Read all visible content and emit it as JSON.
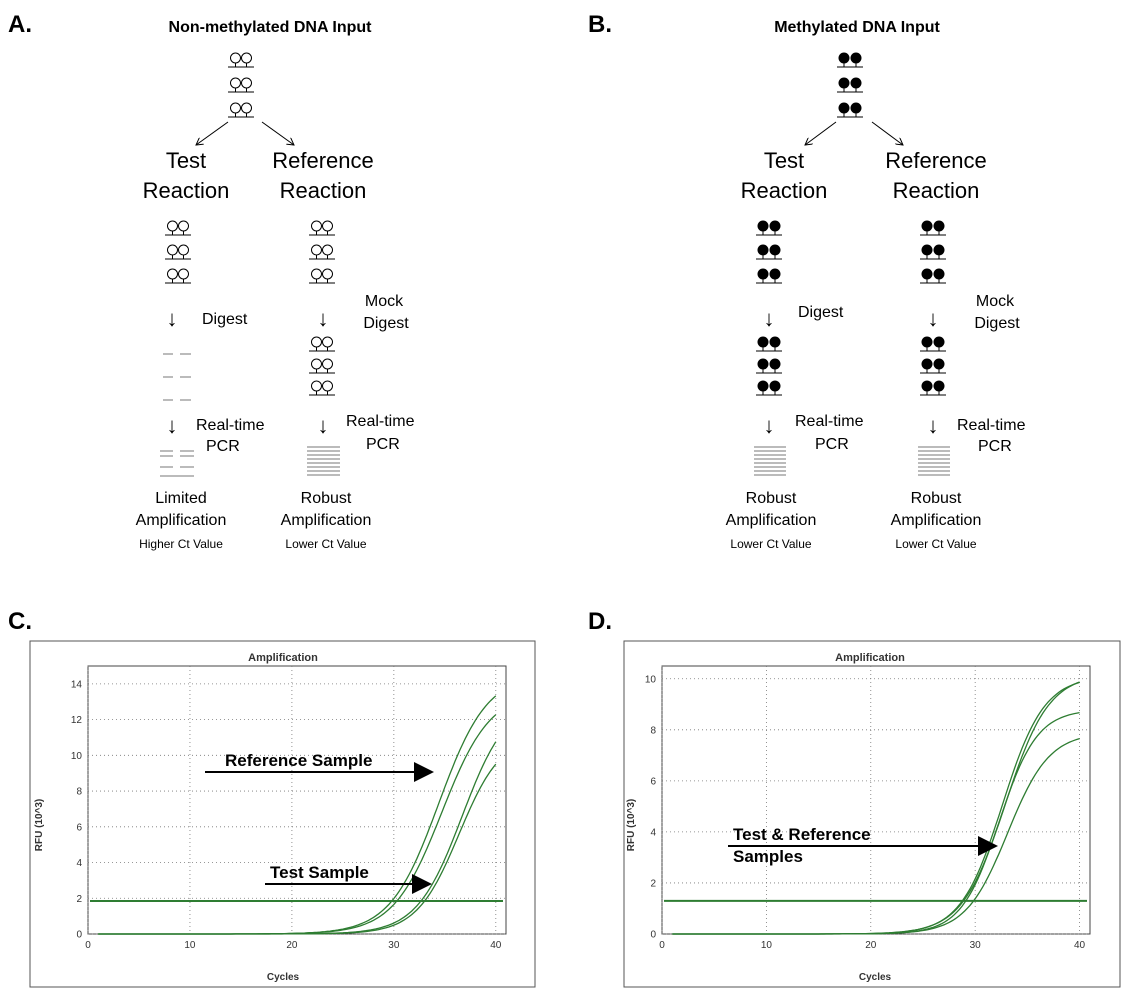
{
  "panel_a": {
    "label": "A.",
    "title": "Non-methylated DNA Input",
    "test": {
      "line1": "Test",
      "line2": "Reaction",
      "step1": "Digest",
      "step2_line1": "Real-time",
      "step2_line2": "PCR",
      "result_line1": "Limited",
      "result_line2": "Amplification",
      "result_ct": "Higher Ct Value"
    },
    "ref": {
      "line1": "Reference",
      "line2": "Reaction",
      "step1_line1": "Mock",
      "step1_line2": "Digest",
      "step2_line1": "Real-time",
      "step2_line2": "PCR",
      "result_line1": "Robust",
      "result_line2": "Amplification",
      "result_ct": "Lower Ct Value"
    }
  },
  "panel_b": {
    "label": "B.",
    "title": "Methylated DNA Input",
    "test": {
      "line1": "Test",
      "line2": "Reaction",
      "step1": "Digest",
      "step2_line1": "Real-time",
      "step2_line2": "PCR",
      "result_line1": "Robust",
      "result_line2": "Amplification",
      "result_ct": "Lower Ct Value"
    },
    "ref": {
      "line1": "Reference",
      "line2": "Reaction",
      "step1_line1": "Mock",
      "step1_line2": "Digest",
      "step2_line1": "Real-time",
      "step2_line2": "PCR",
      "result_line1": "Robust",
      "result_line2": "Amplification",
      "result_ct": "Lower Ct Value"
    }
  },
  "panel_c": {
    "label": "C.",
    "chart_title": "Amplification",
    "xlabel": "Cycles",
    "ylabel": "RFU (10^3)",
    "xlim": [
      0,
      41
    ],
    "ylim": [
      0,
      15
    ],
    "xticks": [
      0,
      10,
      20,
      30,
      40
    ],
    "yticks": [
      0,
      2,
      4,
      6,
      8,
      10,
      12,
      14
    ],
    "threshold": 1.85,
    "curves": [
      {
        "midpoint": 34.4,
        "plateau": 14.6,
        "steepness": 0.42
      },
      {
        "midpoint": 34.7,
        "plateau": 13.6,
        "steepness": 0.42
      },
      {
        "midpoint": 36.7,
        "plateau": 13.2,
        "steepness": 0.45
      },
      {
        "midpoint": 36.4,
        "plateau": 11.2,
        "steepness": 0.48
      }
    ],
    "annotations": [
      {
        "text": "Reference Sample"
      },
      {
        "text": "Test Sample"
      }
    ]
  },
  "panel_d": {
    "label": "D.",
    "chart_title": "Amplification",
    "xlabel": "Cycles",
    "ylabel": "RFU (10^3)",
    "xlim": [
      0,
      41
    ],
    "ylim": [
      0,
      10.5
    ],
    "xticks": [
      0,
      10,
      20,
      30,
      40
    ],
    "yticks": [
      0,
      2,
      4,
      6,
      8,
      10
    ],
    "threshold": 1.3,
    "curves": [
      {
        "midpoint": 32.6,
        "plateau": 10.1,
        "steepness": 0.5
      },
      {
        "midpoint": 32.9,
        "plateau": 10.2,
        "steepness": 0.48
      },
      {
        "midpoint": 32.3,
        "plateau": 8.8,
        "steepness": 0.55
      },
      {
        "midpoint": 33.1,
        "plateau": 7.9,
        "steepness": 0.5
      }
    ],
    "annotations": [
      {
        "text": "Test & Reference"
      },
      {
        "text": "Samples"
      }
    ]
  },
  "colors": {
    "curve": "#2e7d32",
    "threshold": "#2e7d32",
    "grid": "#777777",
    "frame": "#444444"
  }
}
